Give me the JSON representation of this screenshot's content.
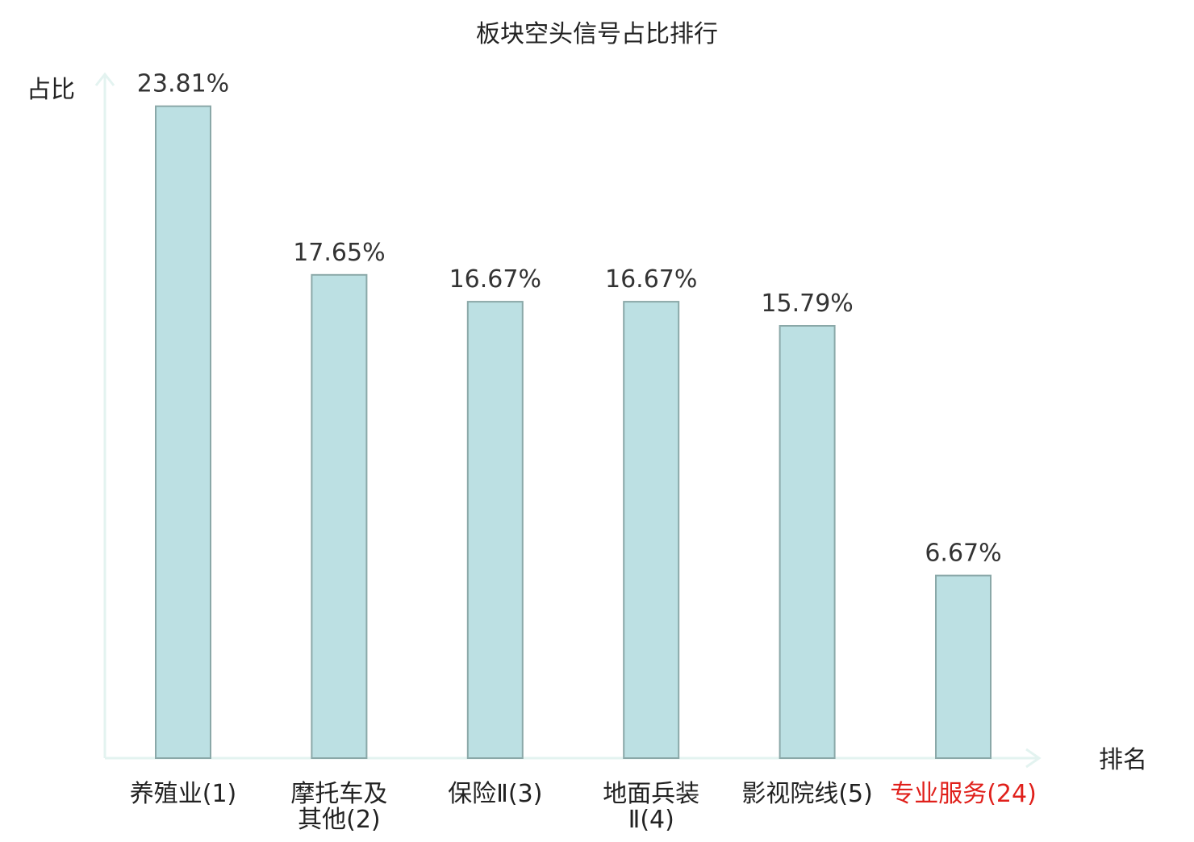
{
  "chart_data": {
    "type": "bar",
    "title": "板块空头信号占比排行",
    "ylabel": "占比",
    "xlabel": "排名",
    "ylim": [
      0,
      25
    ],
    "grid": false,
    "categories": [
      {
        "lines": [
          "养殖业(1)"
        ],
        "highlight": false
      },
      {
        "lines": [
          "摩托车及",
          "其他(2)"
        ],
        "highlight": false
      },
      {
        "lines": [
          "保险Ⅱ(3)"
        ],
        "highlight": false
      },
      {
        "lines": [
          "地面兵装",
          "Ⅱ(4)"
        ],
        "highlight": false
      },
      {
        "lines": [
          "影视院线(5)"
        ],
        "highlight": false
      },
      {
        "lines": [
          "专业服务(24)"
        ],
        "highlight": true
      }
    ],
    "values": [
      23.81,
      17.65,
      16.67,
      16.67,
      15.79,
      6.67
    ],
    "value_labels": [
      "23.81%",
      "17.65%",
      "16.67%",
      "16.67%",
      "15.79%",
      "6.67%"
    ]
  },
  "colors": {
    "bar_fill": "#bce0e3",
    "bar_stroke": "#8aa8a8",
    "axis": "#e3f3f0",
    "text": "#222222",
    "value_text": "#333333",
    "highlight_text": "#e0201b"
  }
}
